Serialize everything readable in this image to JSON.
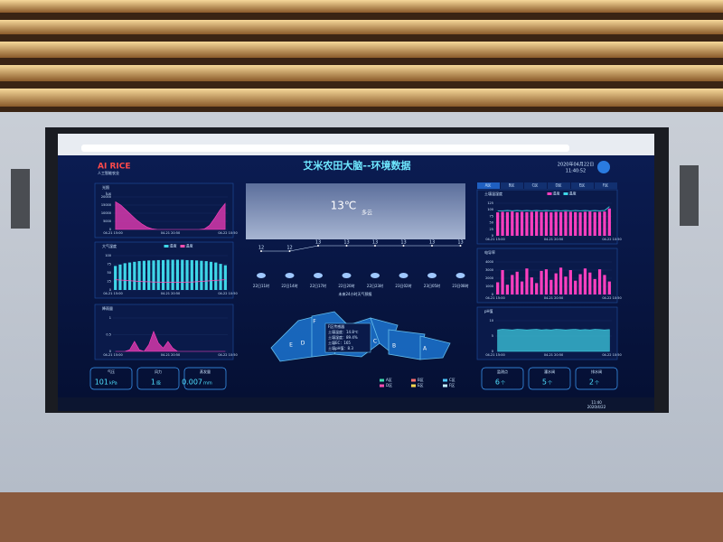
{
  "header": {
    "logo": "AI RICE",
    "logo_sub": "人工智能农业",
    "title": "艾米农田大脑--环境数据",
    "date": "2020年04月22日",
    "time": "11:40:52"
  },
  "panels": {
    "light": {
      "title": "光照",
      "unit": "lux",
      "ylim": [
        0,
        20000
      ],
      "yticks": [
        0,
        5000,
        10000,
        15000,
        20000
      ],
      "xlabels": [
        "04-21 15:00",
        "04-21 20:50",
        "04-22 10:50"
      ],
      "series": [
        {
          "kind": "area",
          "color": "#ff3fbf",
          "values": [
            17000,
            15000,
            12000,
            9000,
            6000,
            3500,
            1500,
            400,
            0,
            0,
            0,
            0,
            0,
            0,
            0,
            0,
            0,
            300,
            2500,
            7000,
            12000,
            16000
          ]
        }
      ]
    },
    "humidity": {
      "title": "大气湿度",
      "ylim": [
        0,
        100
      ],
      "yticks": [
        0,
        25,
        50,
        75,
        100
      ],
      "xlabels": [
        "04-21 15:00",
        "04-21 20:50",
        "04-22 10:50"
      ],
      "series": [
        {
          "kind": "bar",
          "name": "湿度",
          "color": "#3fd6e8",
          "values": [
            70,
            74,
            78,
            80,
            82,
            84,
            85,
            86,
            86,
            87,
            87,
            88,
            88,
            88,
            88,
            87,
            87,
            86,
            85,
            84,
            82,
            80,
            76,
            72
          ]
        },
        {
          "kind": "line",
          "name": "温度",
          "color": "#ff4fb0",
          "values": [
            30,
            29,
            28,
            27,
            26,
            25,
            24,
            24,
            23,
            23,
            22,
            22,
            22,
            22,
            22,
            23,
            23,
            24,
            25,
            26,
            27,
            28,
            29,
            30
          ]
        }
      ]
    },
    "rain": {
      "title": "降雨量",
      "ylim": [
        0,
        1
      ],
      "yticks": [
        0,
        0.5,
        1
      ],
      "xlabels": [
        "04-21 15:00",
        "04-21 20:50",
        "04-22 10:50"
      ],
      "series": [
        {
          "kind": "area",
          "color": "#ff3fbf",
          "values": [
            0,
            0,
            0,
            0.05,
            0.3,
            0.05,
            0,
            0.2,
            0.6,
            0.25,
            0.1,
            0.3,
            0.1,
            0,
            0,
            0,
            0,
            0,
            0,
            0,
            0,
            0,
            0,
            0
          ]
        }
      ]
    },
    "soil": {
      "title": "土壤温湿度",
      "tabs": [
        "A区",
        "B区",
        "C区",
        "D区",
        "E区",
        "F区"
      ],
      "ylim": [
        0,
        125
      ],
      "yticks": [
        0,
        25,
        50,
        75,
        100,
        125
      ],
      "xlabels": [
        "04-21 15:00",
        "04-21 20:50",
        "04-22 10:50"
      ],
      "series": [
        {
          "kind": "bar",
          "name": "湿度",
          "color": "#ff3fbf",
          "values": [
            90,
            92,
            91,
            93,
            90,
            92,
            91,
            92,
            93,
            91,
            92,
            90,
            92,
            91,
            93,
            92,
            91,
            90,
            92,
            93,
            91,
            92,
            93,
            105
          ]
        },
        {
          "kind": "line",
          "name": "温度",
          "color": "#3fd6e8",
          "values": [
            95,
            96,
            97,
            96,
            97,
            96,
            97,
            96,
            97,
            96,
            97,
            96,
            97,
            96,
            97,
            96,
            97,
            96,
            97,
            96,
            97,
            96,
            97,
            112
          ]
        }
      ]
    },
    "ec": {
      "title": "电导率",
      "ylim": [
        0,
        4000
      ],
      "yticks": [
        0,
        1000,
        2000,
        3000,
        4000
      ],
      "xlabels": [
        "04-21 15:00",
        "04-21 20:50",
        "04-22 10:50"
      ],
      "series": [
        {
          "kind": "bar",
          "color": "#ff3fbf",
          "values": [
            1500,
            3000,
            1200,
            2400,
            2800,
            1600,
            3200,
            2100,
            1400,
            2900,
            3100,
            1800,
            2600,
            3300,
            2200,
            3000,
            1700,
            2500,
            3200,
            2700,
            1900,
            3100,
            2400,
            1600
          ]
        }
      ]
    },
    "ph": {
      "title": "pH值",
      "ylim": [
        0,
        10
      ],
      "yticks": [
        0,
        5,
        10
      ],
      "xlabels": [
        "04-21 15:00",
        "04-21 20:50",
        "04-22 10:50"
      ],
      "series": [
        {
          "kind": "area",
          "color": "#3fd6e8",
          "values": [
            7,
            7.2,
            7.1,
            7,
            7.2,
            7.1,
            7,
            7.1,
            7.2,
            7,
            7.1,
            7,
            7.2,
            7.1,
            7,
            7.1,
            7.2,
            7,
            7.1,
            7,
            7.2,
            7.1,
            7,
            7.1
          ]
        }
      ]
    }
  },
  "weather": {
    "now_temp": "13℃",
    "now_desc": "多云",
    "temps": [
      12,
      12,
      13,
      13,
      13,
      13,
      13,
      13
    ],
    "times": [
      "22日11时",
      "22日14时",
      "22日17时",
      "22日20时",
      "22日23时",
      "23日02时",
      "23日05时",
      "23日08时"
    ],
    "caption": "未来24小时天气预报"
  },
  "map": {
    "regions": [
      "A",
      "B",
      "C",
      "D",
      "E",
      "F"
    ],
    "popup": [
      "F区传感器",
      "土壤温度：14.8℃",
      "土壤湿度：89.4%",
      "土壤EC：165",
      "土壤pH值：8.3"
    ],
    "legend": [
      {
        "name": "A区",
        "color": "#3fe0b0"
      },
      {
        "name": "B区",
        "color": "#ff6f6f"
      },
      {
        "name": "C区",
        "color": "#4fc8ff"
      },
      {
        "name": "D区",
        "color": "#ff4fb0"
      },
      {
        "name": "E区",
        "color": "#ffd84f"
      },
      {
        "name": "F区",
        "color": "#c4f0ff"
      }
    ]
  },
  "stats_left": [
    {
      "label": "气压",
      "value": "101",
      "unit": "kPa"
    },
    {
      "label": "风力",
      "value": "1",
      "unit": "级"
    },
    {
      "label": "蒸发量",
      "value": "0.007",
      "unit": "mm"
    }
  ],
  "stats_right": [
    {
      "label": "监测点",
      "value": "6",
      "unit": "个"
    },
    {
      "label": "灌水阀",
      "value": "5",
      "unit": "个"
    },
    {
      "label": "排水阀",
      "value": "2",
      "unit": "个"
    }
  ],
  "taskbar": {
    "time": "11:40",
    "date": "2020/4/22"
  }
}
